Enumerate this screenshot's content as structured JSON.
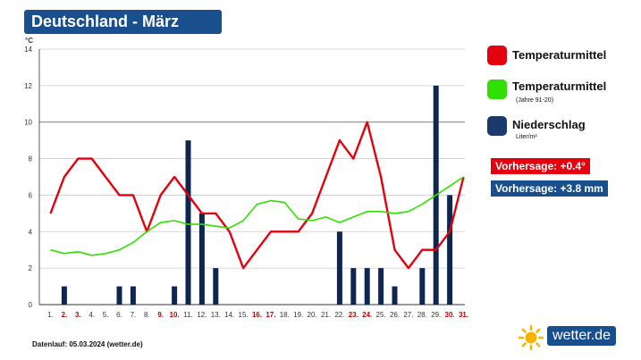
{
  "header": {
    "title": "Deutschland - März"
  },
  "chart_data": {
    "type": "line+bar",
    "ylabel": "°C",
    "ylim": [
      0,
      14
    ],
    "yticks": [
      0,
      2,
      4,
      6,
      8,
      10,
      12,
      14
    ],
    "categories": [
      "1.",
      "2.",
      "3.",
      "4.",
      "5.",
      "6.",
      "7.",
      "8.",
      "9.",
      "10.",
      "11.",
      "12.",
      "13.",
      "14.",
      "15.",
      "16.",
      "17.",
      "18.",
      "19.",
      "20.",
      "21.",
      "22.",
      "23.",
      "24.",
      "25.",
      "26.",
      "27.",
      "28.",
      "29.",
      "30.",
      "31."
    ],
    "weekend_days": [
      2,
      3,
      9,
      10,
      16,
      17,
      23,
      24,
      30,
      31
    ],
    "series": [
      {
        "name": "Temperaturmittel",
        "type": "line",
        "color": "#e3000f",
        "values": [
          5,
          7,
          8,
          8,
          7,
          6,
          6,
          4,
          6,
          7,
          6,
          5,
          5,
          4,
          2,
          3,
          4,
          4,
          4,
          5,
          7,
          9,
          8,
          10,
          7,
          3,
          2,
          3,
          3,
          4,
          7
        ]
      },
      {
        "name": "Temperaturmittel (Jahre 91-20)",
        "type": "line",
        "color": "#2fe000",
        "values": [
          3,
          2.8,
          2.9,
          2.7,
          2.8,
          3,
          3.4,
          4,
          4.5,
          4.6,
          4.4,
          4.4,
          4.3,
          4.2,
          4.6,
          5.5,
          5.7,
          5.6,
          4.7,
          4.6,
          4.8,
          4.5,
          4.8,
          5.1,
          5.1,
          5,
          5.1,
          5.5,
          6,
          6.5,
          7
        ]
      },
      {
        "name": "Niederschlag",
        "type": "bar",
        "color": "#0f2750",
        "values": [
          0,
          1,
          0,
          0,
          0,
          1,
          1,
          0,
          0,
          1,
          9,
          5,
          2,
          0,
          0,
          0,
          0,
          0,
          0,
          0,
          0,
          4,
          2,
          2,
          2,
          1,
          0,
          2,
          12,
          6,
          0
        ]
      }
    ]
  },
  "legend": {
    "items": [
      {
        "label": "Temperaturmittel",
        "sub": "",
        "color": "#e3000f"
      },
      {
        "label": "Temperaturmittel",
        "sub": "(Jahre 91-20)",
        "color": "#2fe000"
      },
      {
        "label": "Niederschlag",
        "sub": "Liter/m²",
        "color": "#1a3a6e"
      }
    ]
  },
  "forecasts": [
    {
      "text": "Vorhersage: +0.4°",
      "color": "#e3000f"
    },
    {
      "text": "Vorhersage: +3.8 mm",
      "color": "#1a4f8e"
    }
  ],
  "footer": {
    "text": "Datenlauf: 05.03.2024 (wetter.de)"
  },
  "logo": {
    "text": "wetter.de"
  }
}
